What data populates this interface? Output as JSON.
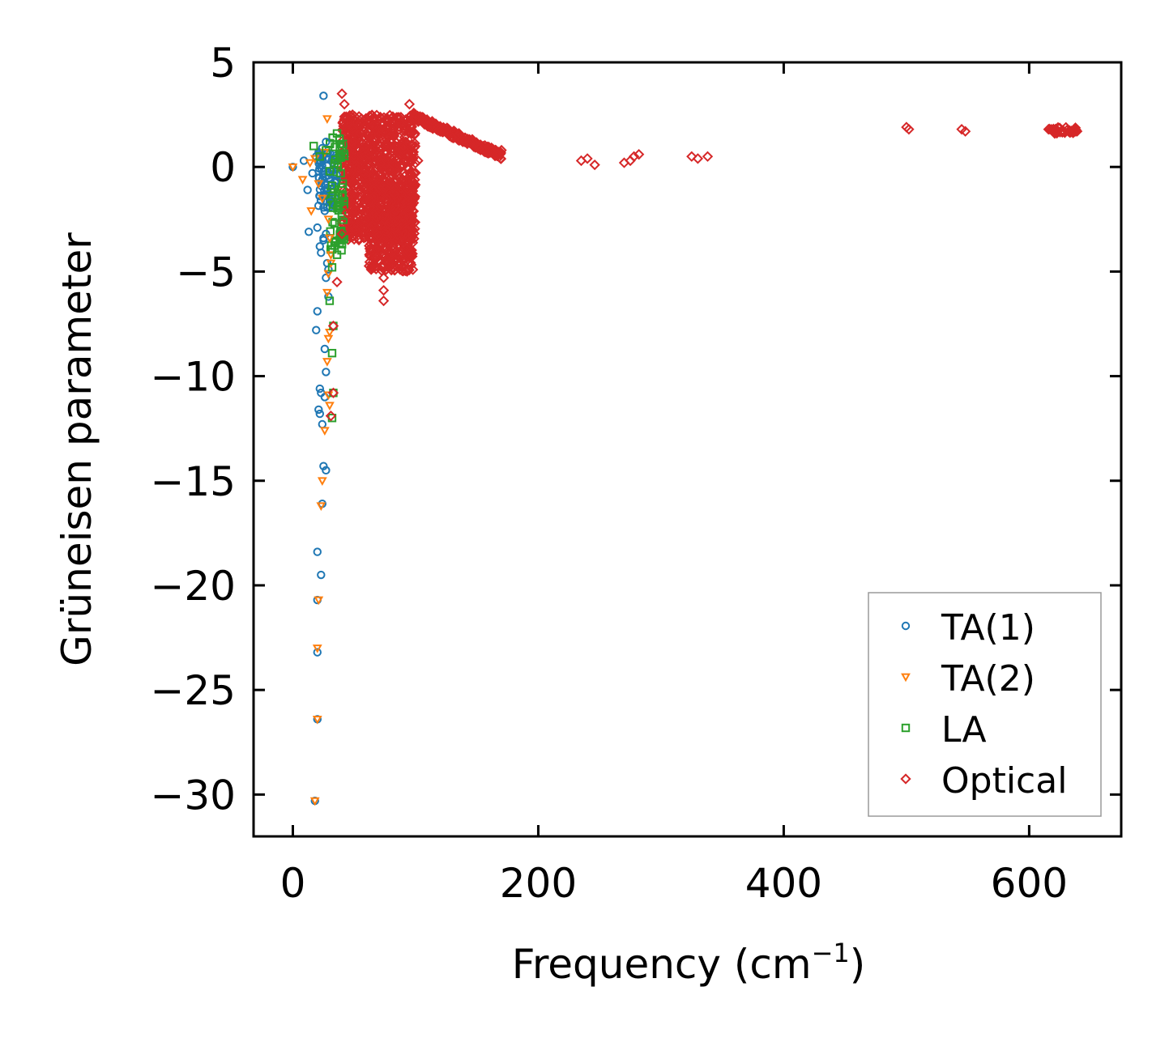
{
  "chart_data": {
    "type": "scatter",
    "title": "",
    "xlabel": "Frequency (cm",
    "xlabel_sup": "−1",
    "xlabel_suffix": ")",
    "ylabel": "Grüneisen parameter",
    "xlim": [
      -32,
      675
    ],
    "ylim": [
      -32,
      5
    ],
    "xticks": [
      0,
      200,
      400,
      600
    ],
    "xtick_labels": [
      "0",
      "200",
      "400",
      "600"
    ],
    "yticks": [
      5,
      0,
      -5,
      -10,
      -15,
      -20,
      -25,
      -30
    ],
    "ytick_labels": [
      "5",
      "0",
      "−5",
      "−10",
      "−15",
      "−20",
      "−25",
      "−30"
    ],
    "legend_position": "lower-right",
    "series": [
      {
        "name": "TA(1)",
        "marker": "circle",
        "color": "#1f77b4",
        "points": [
          [
            0,
            0
          ],
          [
            9,
            0.3
          ],
          [
            12,
            -1.1
          ],
          [
            16,
            -0.3
          ],
          [
            19,
            0.5
          ],
          [
            20,
            -2.9
          ],
          [
            22,
            -1.4
          ],
          [
            24,
            0.9
          ],
          [
            24,
            -0.6
          ],
          [
            25,
            -3.5
          ],
          [
            26,
            -2.1
          ],
          [
            27,
            1.2
          ],
          [
            28,
            -1.0
          ],
          [
            29,
            -0.4
          ],
          [
            30,
            -1.7
          ],
          [
            31,
            -0.9
          ],
          [
            32,
            -0.2
          ],
          [
            22,
            -3.8
          ],
          [
            23,
            -4.1
          ],
          [
            27,
            -3.2
          ],
          [
            28,
            -4.6
          ],
          [
            27,
            -5.3
          ],
          [
            29,
            -4.9
          ],
          [
            29,
            -6.2
          ],
          [
            20,
            -6.9
          ],
          [
            19,
            -7.8
          ],
          [
            26,
            -8.7
          ],
          [
            27,
            -9.8
          ],
          [
            22,
            -10.6
          ],
          [
            23,
            -10.8
          ],
          [
            26,
            -11.0
          ],
          [
            21,
            -11.6
          ],
          [
            22,
            -11.8
          ],
          [
            24,
            -12.3
          ],
          [
            25,
            -3.4
          ],
          [
            25,
            -14.3
          ],
          [
            27,
            -14.5
          ],
          [
            24,
            -16.1
          ],
          [
            20,
            -18.4
          ],
          [
            23,
            -19.5
          ],
          [
            20,
            -20.7
          ],
          [
            20,
            -23.2
          ],
          [
            20,
            -26.4
          ],
          [
            18,
            -30.3
          ],
          [
            13,
            -3.1
          ],
          [
            25,
            3.4
          ]
        ]
      },
      {
        "name": "TA(2)",
        "marker": "triangle-down",
        "color": "#ff7f0e",
        "points": [
          [
            0,
            0
          ],
          [
            8,
            -0.6
          ],
          [
            14,
            0.2
          ],
          [
            15,
            -2.1
          ],
          [
            18,
            0.4
          ],
          [
            21,
            -0.8
          ],
          [
            24,
            -1.5
          ],
          [
            26,
            0.7
          ],
          [
            28,
            2.3
          ],
          [
            29,
            -2.5
          ],
          [
            30,
            -3.4
          ],
          [
            31,
            -4.2
          ],
          [
            31,
            -4.6
          ],
          [
            29,
            -5.1
          ],
          [
            28,
            -6.0
          ],
          [
            30,
            -7.9
          ],
          [
            29,
            -8.2
          ],
          [
            28,
            -9.3
          ],
          [
            29,
            -10.9
          ],
          [
            30,
            -11.4
          ],
          [
            26,
            -12.6
          ],
          [
            24,
            -15.0
          ],
          [
            23,
            -16.2
          ],
          [
            21,
            -20.7
          ],
          [
            20,
            -23.0
          ],
          [
            20,
            -26.4
          ],
          [
            18,
            -30.3
          ]
        ]
      },
      {
        "name": "LA",
        "marker": "square",
        "color": "#2ca02c",
        "points": [
          [
            17,
            1.0
          ],
          [
            22,
            0.5
          ],
          [
            27,
            0.8
          ],
          [
            30,
            -0.2
          ],
          [
            32,
            -0.9
          ],
          [
            33,
            -1.8
          ],
          [
            34,
            -2.7
          ],
          [
            35,
            -3.6
          ],
          [
            36,
            -4.2
          ],
          [
            32,
            -4.8
          ],
          [
            30,
            -6.4
          ],
          [
            33,
            -7.6
          ],
          [
            32,
            -8.9
          ],
          [
            33,
            -10.8
          ],
          [
            32,
            -12.0
          ],
          [
            38,
            0.6
          ],
          [
            39,
            -0.3
          ],
          [
            40,
            -1.4
          ],
          [
            36,
            1.6
          ],
          [
            41,
            1.1
          ]
        ]
      },
      {
        "name": "Optical",
        "marker": "diamond",
        "color": "#d62728",
        "points": [
          [
            40,
            3.5
          ],
          [
            42,
            3.0
          ],
          [
            42,
            2.4
          ],
          [
            45,
            2.1
          ],
          [
            48,
            1.2
          ],
          [
            50,
            0.4
          ],
          [
            52,
            -0.5
          ],
          [
            55,
            1.6
          ],
          [
            58,
            1.9
          ],
          [
            62,
            0.6
          ],
          [
            66,
            -1.4
          ],
          [
            68,
            -2.4
          ],
          [
            70,
            -3.3
          ],
          [
            72,
            -4.1
          ],
          [
            73,
            -4.7
          ],
          [
            74,
            -5.3
          ],
          [
            74,
            -5.9
          ],
          [
            74,
            -6.4
          ],
          [
            76,
            -4.9
          ],
          [
            78,
            -3.7
          ],
          [
            80,
            -2.6
          ],
          [
            85,
            -1.5
          ],
          [
            88,
            0.5
          ],
          [
            92,
            2.2
          ],
          [
            95,
            3.0
          ],
          [
            100,
            2.5
          ],
          [
            105,
            2.2
          ],
          [
            112,
            1.9
          ],
          [
            120,
            1.7
          ],
          [
            130,
            1.4
          ],
          [
            140,
            1.2
          ],
          [
            150,
            1.0
          ],
          [
            160,
            0.9
          ],
          [
            170,
            0.8
          ],
          [
            235,
            0.3
          ],
          [
            240,
            0.4
          ],
          [
            246,
            0.1
          ],
          [
            270,
            0.2
          ],
          [
            275,
            0.3
          ],
          [
            278,
            0.5
          ],
          [
            282,
            0.6
          ],
          [
            325,
            0.5
          ],
          [
            330,
            0.4
          ],
          [
            338,
            0.5
          ],
          [
            500,
            1.9
          ],
          [
            502,
            1.8
          ],
          [
            545,
            1.8
          ],
          [
            548,
            1.7
          ],
          [
            618,
            1.8
          ],
          [
            622,
            1.75
          ],
          [
            628,
            1.7
          ],
          [
            632,
            1.7
          ],
          [
            638,
            1.7
          ],
          [
            33,
            -7.6
          ],
          [
            33,
            -10.8
          ],
          [
            31,
            -11.9
          ],
          [
            36,
            -5.5
          ],
          [
            40,
            -3.2
          ],
          [
            44,
            -2.2
          ],
          [
            60,
            -1.0
          ],
          [
            64,
            0.8
          ],
          [
            82,
            -1.0
          ],
          [
            86,
            1.0
          ],
          [
            96,
            0.2
          ],
          [
            102,
            0.3
          ],
          [
            66,
            2.0
          ],
          [
            70,
            1.5
          ],
          [
            76,
            2.3
          ],
          [
            90,
            1.0
          ]
        ]
      }
    ],
    "dense_clusters": [
      {
        "series": "Optical",
        "x_range": [
          40,
          100
        ],
        "y_range": [
          -3.5,
          2.5
        ],
        "count": 900,
        "seed": 11
      },
      {
        "series": "Optical",
        "x_range": [
          62,
          98
        ],
        "y_range": [
          -5.0,
          -1.0
        ],
        "count": 350,
        "seed": 23
      },
      {
        "series": "Optical",
        "x_range": [
          98,
          170
        ],
        "y_range": [
          0.7,
          2.6
        ],
        "count": 250,
        "seed": 37,
        "slope_band": true
      },
      {
        "series": "Optical",
        "x_range": [
          615,
          640
        ],
        "y_range": [
          1.6,
          1.9
        ],
        "count": 40,
        "seed": 41
      },
      {
        "series": "TA(1)",
        "x_range": [
          20,
          36
        ],
        "y_range": [
          -2.0,
          0.8
        ],
        "count": 60,
        "seed": 53
      },
      {
        "series": "LA",
        "x_range": [
          30,
          42
        ],
        "y_range": [
          -4.0,
          1.5
        ],
        "count": 60,
        "seed": 67
      }
    ]
  }
}
